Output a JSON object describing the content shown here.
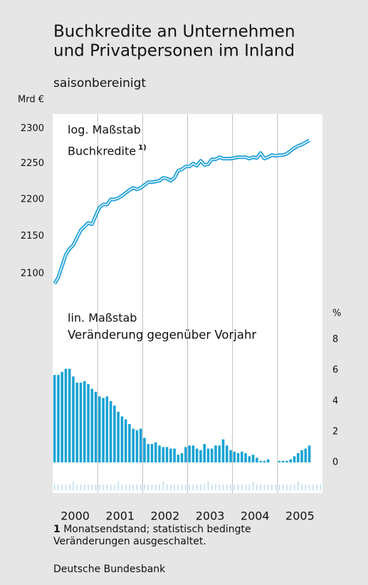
{
  "title": [
    "Buchkredite an Unternehmen",
    "und Privatpersonen im Inland"
  ],
  "subtitle": "saisonbereinigt",
  "x_labels": [
    "2000",
    "2001",
    "2002",
    "2003",
    "2004",
    "2005"
  ],
  "chart_data": [
    {
      "type": "line",
      "unit": "Mrd €",
      "annotation": "log. Maßstab",
      "log": true,
      "ylim": [
        2062,
        2321
      ],
      "yticks": [
        2100,
        2150,
        2200,
        2250,
        2300
      ],
      "series": [
        {
          "name": "Buchkredite",
          "footnote_ref": "1)",
          "color": "#1e9fd6",
          "values": [
            2087,
            2095,
            2110,
            2125,
            2133,
            2138,
            2148,
            2158,
            2163,
            2168,
            2166,
            2178,
            2189,
            2193,
            2193,
            2200,
            2200,
            2202,
            2205,
            2209,
            2213,
            2216,
            2214,
            2216,
            2220,
            2224,
            2224,
            2225,
            2226,
            2230,
            2229,
            2226,
            2230,
            2240,
            2242,
            2246,
            2246,
            2250,
            2247,
            2254,
            2248,
            2249,
            2256,
            2256,
            2259,
            2257,
            2257,
            2257,
            2258,
            2259,
            2259,
            2259,
            2257,
            2259,
            2258,
            2265,
            2257,
            2259,
            2262,
            2261,
            2262,
            2262,
            2264,
            2268,
            2272,
            2275,
            2277,
            2280,
            2283
          ]
        }
      ]
    },
    {
      "type": "bar",
      "unit": "%",
      "annotation": "lin. Maßstab",
      "ylim": [
        -2,
        10.4
      ],
      "yticks": [
        0,
        2,
        4,
        6,
        8
      ],
      "series": [
        {
          "name": "Veränderung gegenüber Vorjahr",
          "color": "#1aa3d4",
          "values": [
            5.7,
            5.7,
            5.9,
            6.1,
            6.1,
            5.6,
            5.2,
            5.2,
            5.3,
            5.1,
            4.8,
            4.6,
            4.3,
            4.2,
            4.3,
            4.0,
            3.7,
            3.3,
            3.0,
            2.8,
            2.5,
            2.2,
            2.1,
            2.2,
            1.6,
            1.2,
            1.2,
            1.3,
            1.1,
            1.0,
            1.0,
            0.9,
            0.9,
            0.5,
            0.6,
            1.0,
            1.1,
            1.1,
            0.9,
            0.8,
            1.2,
            0.9,
            0.9,
            1.1,
            1.1,
            1.5,
            1.1,
            0.8,
            0.7,
            0.6,
            0.7,
            0.6,
            0.4,
            0.5,
            0.3,
            0.1,
            0.1,
            0.2,
            0.0,
            0.0,
            0.1,
            0.1,
            0.1,
            0.2,
            0.4,
            0.6,
            0.8,
            0.9,
            1.1
          ]
        }
      ]
    }
  ],
  "footnote": {
    "marker": "1",
    "text": "Monatsendstand; statistisch bedingte Veränderungen ausgeschaltet."
  },
  "source": "Deutsche Bundesbank"
}
